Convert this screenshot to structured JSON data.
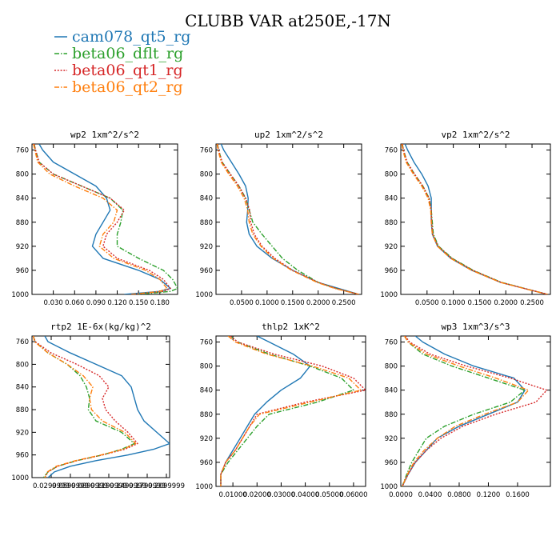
{
  "figure_title": "CLUBB VAR at250E,-17N",
  "legend": [
    {
      "name": "cam078_qt5_rg",
      "color": "#1f77b4",
      "dash": "solid"
    },
    {
      "name": "beta06_dflt_rg",
      "color": "#2ca02c",
      "dash": "dashdot"
    },
    {
      "name": "beta06_qt1_rg",
      "color": "#d62728",
      "dash": "dot"
    },
    {
      "name": "beta06_qt2_rg",
      "color": "#ff7f0e",
      "dash": "dashdot"
    }
  ],
  "chart_data": [
    {
      "type": "line",
      "title": "wp2  1xm^2/s^2",
      "ylim": [
        1000,
        750
      ],
      "y_ticks": [
        760,
        800,
        840,
        880,
        920,
        960,
        1000
      ],
      "xlim": [
        0.0,
        0.205
      ],
      "x_ticks": [
        0.03,
        0.06,
        0.09,
        0.12,
        0.15,
        0.18
      ],
      "x_tick_labels": [
        "0.030",
        "0.060",
        "0.090",
        "0.120",
        "0.150",
        "0.180"
      ],
      "y": [
        750,
        760,
        780,
        800,
        820,
        840,
        860,
        880,
        900,
        920,
        940,
        960,
        975,
        990,
        995,
        1000
      ],
      "series": [
        {
          "name": "cam078_qt5_rg",
          "x": [
            0.01,
            0.015,
            0.03,
            0.06,
            0.09,
            0.105,
            0.11,
            0.1,
            0.09,
            0.085,
            0.1,
            0.15,
            0.18,
            0.195,
            0.18,
            0.13
          ]
        },
        {
          "name": "beta06_dflt_rg",
          "x": [
            0.003,
            0.005,
            0.01,
            0.03,
            0.07,
            0.11,
            0.128,
            0.125,
            0.12,
            0.12,
            0.15,
            0.185,
            0.198,
            0.205,
            0.195,
            0.15
          ]
        },
        {
          "name": "beta06_qt1_rg",
          "x": [
            0.003,
            0.005,
            0.01,
            0.03,
            0.07,
            0.11,
            0.13,
            0.12,
            0.105,
            0.1,
            0.12,
            0.165,
            0.185,
            0.195,
            0.185,
            0.14
          ]
        },
        {
          "name": "beta06_qt2_rg",
          "x": [
            0.002,
            0.004,
            0.008,
            0.025,
            0.06,
            0.1,
            0.12,
            0.115,
            0.1,
            0.095,
            0.115,
            0.16,
            0.18,
            0.19,
            0.18,
            0.14
          ]
        }
      ]
    },
    {
      "type": "line",
      "title": "up2  1xm^2/s^2",
      "ylim": [
        1000,
        750
      ],
      "y_ticks": [
        760,
        800,
        840,
        880,
        920,
        960,
        1000
      ],
      "xlim": [
        0.0,
        0.285
      ],
      "x_ticks": [
        0.05,
        0.1,
        0.15,
        0.2,
        0.25
      ],
      "x_tick_labels": [
        "0.0500",
        "0.1000",
        "0.1500",
        "0.2000",
        "0.2500"
      ],
      "y": [
        750,
        760,
        780,
        800,
        820,
        840,
        860,
        880,
        900,
        920,
        940,
        960,
        980,
        990,
        1000
      ],
      "series": [
        {
          "name": "cam078_qt5_rg",
          "x": [
            0.01,
            0.015,
            0.03,
            0.045,
            0.058,
            0.063,
            0.062,
            0.06,
            0.065,
            0.08,
            0.11,
            0.15,
            0.2,
            0.24,
            0.28
          ]
        },
        {
          "name": "beta06_dflt_rg",
          "x": [
            0.003,
            0.005,
            0.012,
            0.028,
            0.045,
            0.058,
            0.065,
            0.072,
            0.09,
            0.11,
            0.13,
            0.16,
            0.2,
            0.235,
            0.28
          ]
        },
        {
          "name": "beta06_qt1_rg",
          "x": [
            0.003,
            0.005,
            0.012,
            0.028,
            0.045,
            0.058,
            0.066,
            0.068,
            0.075,
            0.09,
            0.115,
            0.15,
            0.2,
            0.235,
            0.28
          ]
        },
        {
          "name": "beta06_qt2_rg",
          "x": [
            0.002,
            0.004,
            0.01,
            0.025,
            0.042,
            0.055,
            0.062,
            0.065,
            0.072,
            0.088,
            0.112,
            0.148,
            0.198,
            0.232,
            0.28
          ]
        }
      ]
    },
    {
      "type": "line",
      "title": "vp2  1xm^2/s^2",
      "ylim": [
        1000,
        750
      ],
      "y_ticks": [
        760,
        800,
        840,
        880,
        920,
        960,
        1000
      ],
      "xlim": [
        0.0,
        0.285
      ],
      "x_ticks": [
        0.05,
        0.1,
        0.15,
        0.2,
        0.25
      ],
      "x_tick_labels": [
        "0.0500",
        "0.1000",
        "0.1500",
        "0.2000",
        "0.2500"
      ],
      "y": [
        750,
        760,
        780,
        800,
        820,
        840,
        860,
        880,
        900,
        920,
        940,
        960,
        980,
        990,
        1000
      ],
      "series": [
        {
          "name": "cam078_qt5_rg",
          "x": [
            0.008,
            0.013,
            0.025,
            0.04,
            0.052,
            0.058,
            0.058,
            0.058,
            0.06,
            0.07,
            0.095,
            0.135,
            0.19,
            0.235,
            0.28
          ]
        },
        {
          "name": "beta06_dflt_rg",
          "x": [
            0.003,
            0.005,
            0.012,
            0.026,
            0.042,
            0.054,
            0.058,
            0.06,
            0.062,
            0.072,
            0.098,
            0.138,
            0.192,
            0.236,
            0.28
          ]
        },
        {
          "name": "beta06_qt1_rg",
          "x": [
            0.003,
            0.005,
            0.012,
            0.026,
            0.042,
            0.054,
            0.058,
            0.059,
            0.061,
            0.071,
            0.097,
            0.137,
            0.191,
            0.235,
            0.28
          ]
        },
        {
          "name": "beta06_qt2_rg",
          "x": [
            0.002,
            0.004,
            0.01,
            0.024,
            0.04,
            0.052,
            0.057,
            0.058,
            0.06,
            0.07,
            0.095,
            0.135,
            0.19,
            0.234,
            0.28
          ]
        }
      ]
    },
    {
      "type": "line",
      "title": "rtp2  1E-6x(kg/kg)^2",
      "ylim": [
        1000,
        750
      ],
      "y_ticks": [
        760,
        800,
        840,
        880,
        920,
        960,
        1000
      ],
      "xlim": [
        0.0,
        0.215
      ],
      "x_ticks": [
        0.03,
        0.06,
        0.09,
        0.12,
        0.15,
        0.18,
        0.21
      ],
      "x_tick_labels": [
        "0.0299999",
        "0.0599999",
        "0.0899999",
        "0.1199999",
        "0.1499999",
        "0.1799999",
        "0.2099999"
      ],
      "y": [
        750,
        760,
        780,
        800,
        820,
        840,
        860,
        880,
        900,
        920,
        940,
        950,
        960,
        970,
        980,
        990,
        1000
      ],
      "series": [
        {
          "name": "cam078_qt5_rg",
          "x": [
            0.02,
            0.025,
            0.06,
            0.1,
            0.14,
            0.155,
            0.16,
            0.165,
            0.175,
            0.195,
            0.215,
            0.19,
            0.15,
            0.1,
            0.06,
            0.035,
            0.025
          ]
        },
        {
          "name": "beta06_dflt_rg",
          "x": [
            0.002,
            0.005,
            0.025,
            0.055,
            0.075,
            0.085,
            0.09,
            0.088,
            0.1,
            0.14,
            0.16,
            0.14,
            0.11,
            0.07,
            0.04,
            0.025,
            0.018
          ]
        },
        {
          "name": "beta06_qt1_rg",
          "x": [
            0.002,
            0.005,
            0.03,
            0.07,
            0.105,
            0.12,
            0.11,
            0.115,
            0.13,
            0.15,
            0.165,
            0.145,
            0.11,
            0.07,
            0.04,
            0.025,
            0.02
          ]
        },
        {
          "name": "beta06_qt2_rg",
          "x": [
            0.002,
            0.004,
            0.025,
            0.055,
            0.08,
            0.095,
            0.09,
            0.093,
            0.11,
            0.145,
            0.162,
            0.142,
            0.108,
            0.068,
            0.038,
            0.024,
            0.02
          ]
        }
      ]
    },
    {
      "type": "line",
      "title": "thlp2  1xK^2",
      "ylim": [
        1000,
        750
      ],
      "y_ticks": [
        760,
        800,
        840,
        880,
        920,
        960,
        1000
      ],
      "xlim": [
        0.003,
        0.065
      ],
      "x_ticks": [
        0.01,
        0.02,
        0.03,
        0.04,
        0.05,
        0.06
      ],
      "x_tick_labels": [
        "0.01000",
        "0.02000",
        "0.03000",
        "0.04000",
        "0.05000",
        "0.06000"
      ],
      "y": [
        750,
        760,
        780,
        800,
        820,
        840,
        860,
        880,
        900,
        920,
        940,
        960,
        980,
        1000
      ],
      "series": [
        {
          "name": "cam078_qt5_rg",
          "x": [
            0.02,
            0.025,
            0.035,
            0.042,
            0.038,
            0.03,
            0.024,
            0.019,
            0.016,
            0.013,
            0.01,
            0.007,
            0.005,
            0.005
          ]
        },
        {
          "name": "beta06_dflt_rg",
          "x": [
            0.009,
            0.012,
            0.025,
            0.042,
            0.055,
            0.06,
            0.045,
            0.025,
            0.02,
            0.016,
            0.012,
            0.008,
            0.005,
            0.005
          ]
        },
        {
          "name": "beta06_qt1_rg",
          "x": [
            0.009,
            0.012,
            0.027,
            0.047,
            0.06,
            0.065,
            0.04,
            0.02,
            0.017,
            0.014,
            0.011,
            0.007,
            0.005,
            0.005
          ]
        },
        {
          "name": "beta06_qt2_rg",
          "x": [
            0.008,
            0.011,
            0.024,
            0.043,
            0.058,
            0.063,
            0.042,
            0.021,
            0.017,
            0.014,
            0.011,
            0.007,
            0.005,
            0.005
          ]
        }
      ]
    },
    {
      "type": "line",
      "title": "wp3  1xm^3/s^3",
      "ylim": [
        1000,
        750
      ],
      "y_ticks": [
        760,
        800,
        840,
        880,
        920,
        960,
        1000
      ],
      "xlim": [
        0.0,
        0.205
      ],
      "x_ticks": [
        0.0,
        0.04,
        0.08,
        0.12,
        0.16
      ],
      "x_tick_labels": [
        "0.0000",
        "0.0400",
        "0.0800",
        "0.1200",
        "0.1600"
      ],
      "y": [
        750,
        760,
        780,
        800,
        820,
        840,
        860,
        880,
        900,
        920,
        940,
        960,
        980,
        1000
      ],
      "series": [
        {
          "name": "cam078_qt5_rg",
          "x": [
            0.02,
            0.03,
            0.06,
            0.1,
            0.155,
            0.17,
            0.16,
            0.12,
            0.08,
            0.05,
            0.035,
            0.02,
            0.01,
            0.002
          ]
        },
        {
          "name": "beta06_dflt_rg",
          "x": [
            0.005,
            0.01,
            0.03,
            0.07,
            0.12,
            0.17,
            0.15,
            0.1,
            0.06,
            0.035,
            0.025,
            0.015,
            0.008,
            0.002
          ]
        },
        {
          "name": "beta06_qt1_rg",
          "x": [
            0.006,
            0.012,
            0.04,
            0.09,
            0.15,
            0.2,
            0.185,
            0.13,
            0.085,
            0.055,
            0.035,
            0.02,
            0.01,
            0.002
          ]
        },
        {
          "name": "beta06_qt2_rg",
          "x": [
            0.005,
            0.01,
            0.035,
            0.08,
            0.13,
            0.175,
            0.16,
            0.115,
            0.075,
            0.05,
            0.032,
            0.018,
            0.009,
            0.002
          ]
        }
      ]
    }
  ]
}
